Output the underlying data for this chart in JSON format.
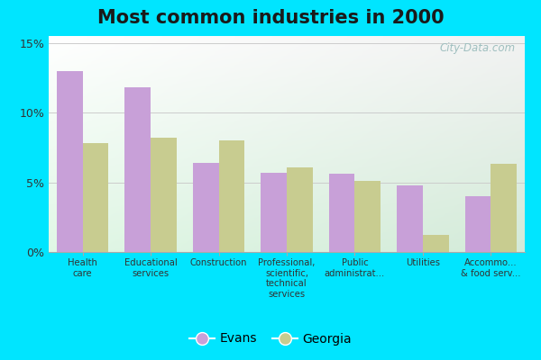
{
  "title": "Most common industries in 2000",
  "categories": [
    "Health\ncare",
    "Educational\nservices",
    "Construction",
    "Professional,\nscientific,\ntechnical\nservices",
    "Public\nadministrat...",
    "Utilities",
    "Accommo...\n& food serv..."
  ],
  "evans_values": [
    13.0,
    11.8,
    6.4,
    5.7,
    5.6,
    4.8,
    4.0
  ],
  "georgia_values": [
    7.8,
    8.2,
    8.0,
    6.1,
    5.1,
    1.2,
    6.3
  ],
  "evans_color": "#c8a0d8",
  "georgia_color": "#c8cc90",
  "ylim": [
    0,
    15.5
  ],
  "yticks": [
    0,
    5,
    10,
    15
  ],
  "ytick_labels": [
    "0%",
    "5%",
    "10%",
    "15%"
  ],
  "outer_background": "#00e5ff",
  "title_fontsize": 15,
  "bar_width": 0.38,
  "legend_evans": "Evans",
  "legend_georgia": "Georgia",
  "watermark": "City-Data.com"
}
